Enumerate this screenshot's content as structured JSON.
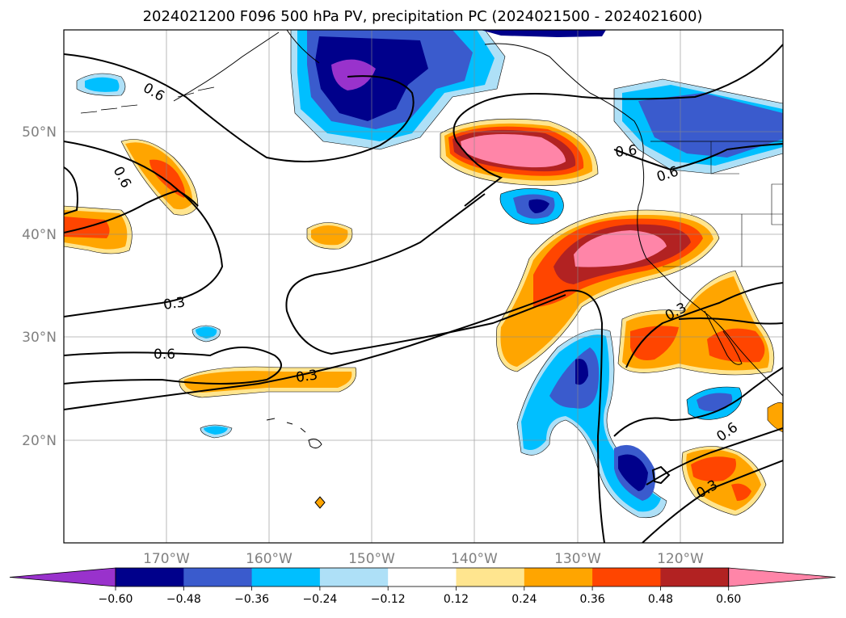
{
  "figure": {
    "title": "2024021200 F096 500 hPa PV, precipitation PC (2024021500 - 2024021600)"
  },
  "map": {
    "lon_range": [
      -180,
      -110
    ],
    "lat_range": [
      10,
      60
    ],
    "lat_ticks": [
      "50°N",
      "40°N",
      "30°N",
      "20°N"
    ],
    "lon_ticks": [
      "170°W",
      "160°W",
      "150°W",
      "140°W",
      "130°W",
      "120°W"
    ],
    "grid": true,
    "pv_contour_labels": [
      "0.6",
      "0.6",
      "0.3",
      "0.6",
      "0.3",
      "0.6",
      "0.6",
      "0.3",
      "0.6",
      "0.3"
    ]
  },
  "colorbar": {
    "tick_labels": [
      "−0.60",
      "−0.48",
      "−0.36",
      "−0.24",
      "−0.12",
      "0.12",
      "0.24",
      "0.36",
      "0.48",
      "0.60"
    ],
    "colors": [
      "#9932cc",
      "#00008b",
      "#3a5bcd",
      "#00bfff",
      "#aee0f7",
      "#ffffff",
      "#ffe58f",
      "#ffa500",
      "#ff4500",
      "#b22222",
      "#ff85a8"
    ],
    "extend": "both"
  }
}
